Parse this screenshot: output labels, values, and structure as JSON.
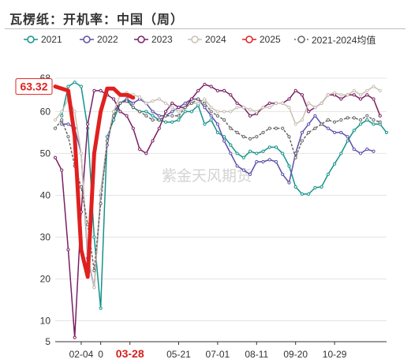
{
  "title": "瓦楞纸：开机率：中国（周）",
  "watermark": "紫金天风期货",
  "chart_data": {
    "type": "line",
    "ylim": [
      5,
      68
    ],
    "yticks": [
      5,
      10,
      20,
      30,
      40,
      50,
      60,
      68
    ],
    "x_domain": [
      1,
      52
    ],
    "x_tick_labels": [
      {
        "x": 5,
        "label": "02-04"
      },
      {
        "x": 8,
        "label": "0"
      },
      {
        "x": 12.5,
        "label": "03-28",
        "highlight": true
      },
      {
        "x": 20,
        "label": "05-21"
      },
      {
        "x": 26,
        "label": "07-01"
      },
      {
        "x": 32,
        "label": "08-11"
      },
      {
        "x": 38,
        "label": "09-20"
      },
      {
        "x": 44,
        "label": "10-29"
      }
    ],
    "last_value_label": "63.32",
    "series": [
      {
        "name": "2021",
        "color": "#15938a",
        "width": 1.5,
        "markers": true,
        "points": [
          [
            2,
            59
          ],
          [
            3,
            66
          ],
          [
            4,
            67
          ],
          [
            5,
            66
          ],
          [
            6,
            56
          ],
          [
            7,
            30
          ],
          [
            8,
            13
          ],
          [
            9,
            54
          ],
          [
            10,
            58
          ],
          [
            11,
            62
          ],
          [
            12,
            63
          ],
          [
            13,
            61
          ],
          [
            14,
            60
          ],
          [
            15,
            60
          ],
          [
            16,
            59
          ],
          [
            17,
            58
          ],
          [
            18,
            57.5
          ],
          [
            19,
            57.5
          ],
          [
            20,
            58
          ],
          [
            21,
            60
          ],
          [
            22,
            60
          ],
          [
            23,
            61.5
          ],
          [
            24,
            57
          ],
          [
            25,
            58
          ],
          [
            26,
            55
          ],
          [
            27,
            54
          ],
          [
            28,
            52
          ],
          [
            29,
            50
          ],
          [
            30,
            49
          ],
          [
            31,
            50.5
          ],
          [
            32,
            50
          ],
          [
            33,
            50.5
          ],
          [
            34,
            51.5
          ],
          [
            35,
            51.5
          ],
          [
            36,
            50
          ],
          [
            37,
            47
          ],
          [
            38,
            42
          ],
          [
            39,
            40.3
          ],
          [
            40,
            40.3
          ],
          [
            41,
            41.8
          ],
          [
            42,
            42
          ],
          [
            43,
            45
          ],
          [
            44,
            47.5
          ],
          [
            45,
            50
          ],
          [
            46,
            53
          ],
          [
            47,
            55.5
          ],
          [
            48,
            57
          ],
          [
            49,
            58
          ],
          [
            50,
            57
          ],
          [
            51,
            57
          ],
          [
            52,
            55
          ]
        ]
      },
      {
        "name": "2022",
        "color": "#5b4fa8",
        "width": 1.5,
        "markers": true,
        "points": [
          [
            2,
            57
          ],
          [
            3,
            57
          ],
          [
            4,
            56
          ],
          [
            5,
            50
          ],
          [
            6,
            25
          ],
          [
            7,
            18
          ],
          [
            8,
            40
          ],
          [
            9,
            52
          ],
          [
            10,
            60
          ],
          [
            11,
            62
          ],
          [
            12,
            63
          ],
          [
            13,
            62
          ],
          [
            14,
            63
          ],
          [
            15,
            62
          ],
          [
            16,
            60
          ],
          [
            17,
            59
          ],
          [
            18,
            59
          ],
          [
            19,
            60
          ],
          [
            20,
            61
          ],
          [
            21,
            62
          ],
          [
            22,
            63
          ],
          [
            23,
            63
          ],
          [
            24,
            61
          ],
          [
            25,
            59
          ],
          [
            26,
            57
          ],
          [
            27,
            53
          ],
          [
            28,
            50
          ],
          [
            29,
            47
          ],
          [
            30,
            46
          ],
          [
            31,
            45
          ],
          [
            32,
            48
          ],
          [
            33,
            48
          ],
          [
            34,
            48.5
          ],
          [
            35,
            48
          ],
          [
            36,
            45
          ],
          [
            37,
            43
          ],
          [
            38,
            50
          ],
          [
            39,
            55
          ],
          [
            40,
            57
          ],
          [
            41,
            59
          ],
          [
            42,
            57
          ],
          [
            43,
            56
          ],
          [
            44,
            55
          ],
          [
            45,
            55
          ],
          [
            46,
            54
          ],
          [
            47,
            51
          ],
          [
            48,
            50
          ],
          [
            49,
            51
          ],
          [
            50,
            50.5
          ]
        ]
      },
      {
        "name": "2023",
        "color": "#7a1f63",
        "width": 1.5,
        "markers": true,
        "points": [
          [
            1,
            49
          ],
          [
            2,
            46
          ],
          [
            3,
            27
          ],
          [
            4,
            6
          ],
          [
            5,
            36
          ],
          [
            6,
            57
          ],
          [
            7,
            65
          ],
          [
            8,
            65
          ],
          [
            9,
            64
          ],
          [
            10,
            63
          ],
          [
            11,
            60
          ],
          [
            12,
            59
          ],
          [
            13,
            56
          ],
          [
            14,
            51
          ],
          [
            15,
            50
          ],
          [
            16,
            53
          ],
          [
            17,
            56
          ],
          [
            18,
            60
          ],
          [
            19,
            62
          ],
          [
            20,
            61
          ],
          [
            21,
            61
          ],
          [
            22,
            63
          ],
          [
            23,
            65
          ],
          [
            24,
            66.5
          ],
          [
            25,
            66
          ],
          [
            26,
            65
          ],
          [
            27,
            65
          ],
          [
            28,
            64
          ],
          [
            29,
            62
          ],
          [
            30,
            61
          ],
          [
            31,
            59
          ],
          [
            32,
            59.5
          ],
          [
            33,
            61
          ],
          [
            34,
            62
          ],
          [
            35,
            62
          ],
          [
            36,
            62
          ],
          [
            37,
            63
          ],
          [
            38,
            65
          ],
          [
            39,
            64
          ],
          [
            40,
            60
          ],
          [
            41,
            61
          ],
          [
            42,
            62
          ],
          [
            43,
            64
          ],
          [
            44,
            64
          ],
          [
            45,
            63
          ],
          [
            46,
            64
          ],
          [
            47,
            64
          ],
          [
            48,
            63
          ],
          [
            49,
            64
          ],
          [
            50,
            63
          ],
          [
            51,
            59
          ]
        ]
      },
      {
        "name": "2024",
        "color": "#c9c0b3",
        "width": 1.5,
        "markers": true,
        "points": [
          [
            1,
            58
          ],
          [
            2,
            60
          ],
          [
            3,
            63
          ],
          [
            4,
            60
          ],
          [
            5,
            50
          ],
          [
            6,
            26
          ],
          [
            7,
            18
          ],
          [
            8,
            41
          ],
          [
            9,
            53
          ],
          [
            10,
            60
          ],
          [
            11,
            64
          ],
          [
            12,
            64.5
          ],
          [
            13,
            64
          ],
          [
            14,
            63.5
          ],
          [
            15,
            62
          ],
          [
            16,
            62.5
          ],
          [
            17,
            63
          ],
          [
            18,
            62
          ],
          [
            19,
            61
          ],
          [
            20,
            60
          ],
          [
            21,
            61
          ],
          [
            22,
            62
          ],
          [
            23,
            62
          ],
          [
            24,
            63
          ],
          [
            25,
            61
          ],
          [
            26,
            60
          ],
          [
            27,
            60
          ],
          [
            28,
            60
          ],
          [
            29,
            61
          ],
          [
            30,
            61
          ],
          [
            31,
            60.5
          ],
          [
            32,
            60
          ],
          [
            33,
            61
          ],
          [
            34,
            61
          ],
          [
            35,
            62
          ],
          [
            36,
            62
          ],
          [
            37,
            61
          ],
          [
            38,
            57
          ],
          [
            39,
            58
          ],
          [
            40,
            62
          ],
          [
            41,
            61
          ],
          [
            42,
            62
          ],
          [
            43,
            64
          ],
          [
            44,
            64.5
          ],
          [
            45,
            64
          ],
          [
            46,
            64
          ],
          [
            47,
            65
          ],
          [
            48,
            64
          ],
          [
            49,
            65
          ],
          [
            50,
            66
          ],
          [
            51,
            65
          ]
        ]
      },
      {
        "name": "2025",
        "color": "#e02020",
        "width": 5,
        "markers": false,
        "points": [
          [
            1,
            66
          ],
          [
            2,
            65.5
          ],
          [
            3,
            65
          ],
          [
            4,
            54
          ],
          [
            5,
            27
          ],
          [
            6,
            20.5
          ],
          [
            7,
            50
          ],
          [
            8,
            60
          ],
          [
            9,
            65.5
          ],
          [
            10,
            65.5
          ],
          [
            11,
            64
          ],
          [
            12,
            64
          ],
          [
            13,
            63.32
          ]
        ]
      },
      {
        "name": "2021-2024均值",
        "color": "#666666",
        "width": 1.5,
        "dashed": true,
        "markers": true,
        "points": [
          [
            1,
            56
          ],
          [
            2,
            58
          ],
          [
            3,
            54
          ],
          [
            4,
            47
          ],
          [
            5,
            42
          ],
          [
            6,
            33
          ],
          [
            7,
            22
          ],
          [
            8,
            38
          ],
          [
            9,
            53
          ],
          [
            10,
            59
          ],
          [
            11,
            62
          ],
          [
            12,
            62.5
          ],
          [
            13,
            61
          ],
          [
            14,
            60
          ],
          [
            15,
            59
          ],
          [
            16,
            58
          ],
          [
            17,
            58
          ],
          [
            18,
            59
          ],
          [
            19,
            59
          ],
          [
            20,
            59
          ],
          [
            21,
            61
          ],
          [
            22,
            62
          ],
          [
            23,
            63
          ],
          [
            24,
            62
          ],
          [
            25,
            60
          ],
          [
            26,
            59
          ],
          [
            27,
            58
          ],
          [
            28,
            56
          ],
          [
            29,
            55
          ],
          [
            30,
            54
          ],
          [
            31,
            53.5
          ],
          [
            32,
            54
          ],
          [
            33,
            55
          ],
          [
            34,
            56
          ],
          [
            35,
            56
          ],
          [
            36,
            56
          ],
          [
            37,
            54
          ],
          [
            38,
            49
          ],
          [
            39,
            53
          ],
          [
            40,
            55
          ],
          [
            41,
            56
          ],
          [
            42,
            57
          ],
          [
            43,
            58
          ],
          [
            44,
            57.5
          ],
          [
            45,
            58
          ],
          [
            46,
            58.5
          ],
          [
            47,
            58.5
          ],
          [
            48,
            58
          ],
          [
            49,
            59
          ],
          [
            50,
            58
          ],
          [
            51,
            57.5
          ]
        ]
      }
    ]
  }
}
